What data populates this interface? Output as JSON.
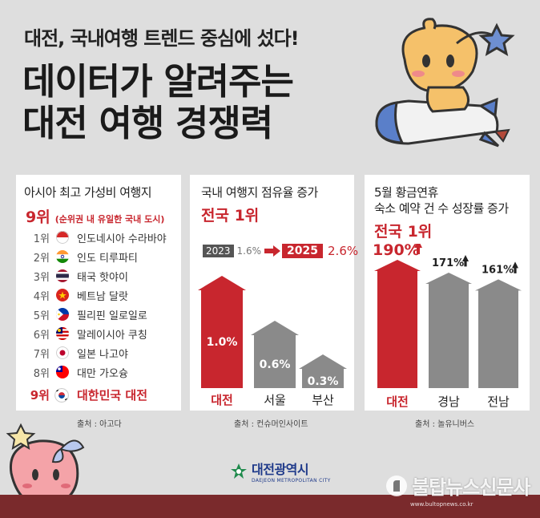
{
  "headline": {
    "sub": "대전, 국내여행 트렌드 중심에 섰다!",
    "line1": "데이터가 알려주는",
    "line2": "대전 여행 경쟁력"
  },
  "panel1": {
    "title": "아시아 최고 가성비 여행지",
    "rank": "9위",
    "rank_note": "(순위권 내 유일한 국내 도시)",
    "items": [
      {
        "rank": "1위",
        "name": "인도네시아 수라바야",
        "flag": "indonesia-flag-icon"
      },
      {
        "rank": "2위",
        "name": "인도 티루파티",
        "flag": "india-flag-icon"
      },
      {
        "rank": "3위",
        "name": "태국 핫야이",
        "flag": "thailand-flag-icon"
      },
      {
        "rank": "4위",
        "name": "베트남 달랏",
        "flag": "vietnam-flag-icon"
      },
      {
        "rank": "5위",
        "name": "필리핀 일로일로",
        "flag": "philippines-flag-icon"
      },
      {
        "rank": "6위",
        "name": "말레이시아 쿠칭",
        "flag": "malaysia-flag-icon"
      },
      {
        "rank": "7위",
        "name": "일본 나고야",
        "flag": "japan-flag-icon"
      },
      {
        "rank": "8위",
        "name": "대만 가오슝",
        "flag": "taiwan-flag-icon"
      }
    ],
    "final_rank": "9위",
    "final_name": "대한민국 대전",
    "source": "출처 : 아고다"
  },
  "panel2": {
    "title": "국내 여행지 점유율 증가",
    "accent": "전국 1위",
    "year_from": "2023",
    "value_from": "1.6%",
    "year_to": "2025",
    "value_to": "2.6%",
    "source": "출처 : 컨슈머인사이트"
  },
  "panel3": {
    "title_line1": "5월 황금연휴",
    "title_line2": "숙소 예약 건 수 성장률 증가",
    "accent": "전국 1위",
    "source": "출처 : 놀유니버스"
  },
  "chart_data": [
    {
      "type": "bar",
      "categories": [
        "대전",
        "서울",
        "부산"
      ],
      "values": [
        1.0,
        0.6,
        0.3
      ],
      "value_labels": [
        "1.0%",
        "0.6%",
        "0.3%"
      ],
      "colors": [
        "#c8262e",
        "#8a8a8a",
        "#8a8a8a"
      ]
    },
    {
      "type": "bar",
      "categories": [
        "대전",
        "경남",
        "전남"
      ],
      "values": [
        190,
        171,
        161
      ],
      "value_labels": [
        "190%",
        "171%",
        "161%"
      ],
      "colors": [
        "#c8262e",
        "#8a8a8a",
        "#8a8a8a"
      ]
    }
  ],
  "logo": {
    "name": "대전광역시",
    "en": "DAEJEON METROPOLITAN CITY",
    "icon": "daejeon-city-emblem-icon"
  },
  "watermark": {
    "name": "불탑뉴스신문사",
    "url": "www.bultopnews.co.kr",
    "icon": "bultop-logo-icon"
  },
  "colors": {
    "accent_red": "#c8262e",
    "bar_gray": "#8a8a8a",
    "background": "#dedede",
    "footer": "#7a2a2c"
  }
}
